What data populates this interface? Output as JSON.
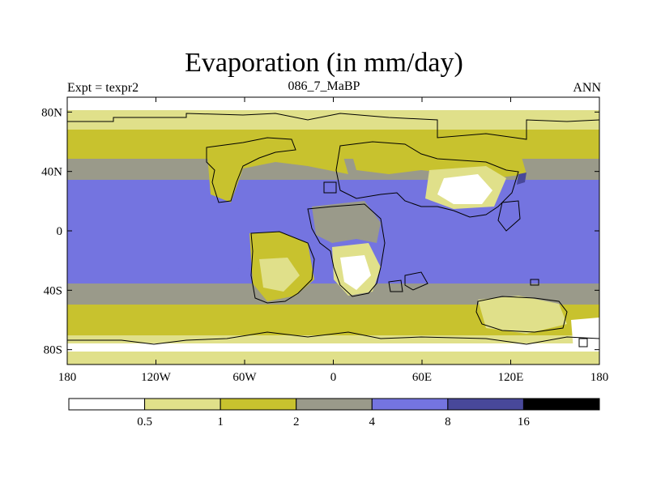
{
  "title": "Evaporation (in mm/day)",
  "subtitle_left": "Expt = texpr2",
  "subtitle_center": "086_7_MaBP",
  "subtitle_right": "ANN",
  "map": {
    "projection": "cylindrical-equidistant",
    "lon_range": [
      -180,
      180
    ],
    "lat_range": [
      -90,
      90
    ],
    "x_ticks": [
      {
        "value": -180,
        "label": "180"
      },
      {
        "value": -120,
        "label": "120W"
      },
      {
        "value": -60,
        "label": "60W"
      },
      {
        "value": 0,
        "label": "0"
      },
      {
        "value": 60,
        "label": "60E"
      },
      {
        "value": 120,
        "label": "120E"
      },
      {
        "value": 180,
        "label": "180"
      }
    ],
    "y_ticks": [
      {
        "value": 80,
        "label": "80N"
      },
      {
        "value": 40,
        "label": "40N"
      },
      {
        "value": 0,
        "label": "0"
      },
      {
        "value": -40,
        "label": "40S"
      },
      {
        "value": -80,
        "label": "80S"
      }
    ]
  },
  "colorbar": {
    "colors": [
      "#ffffff",
      "#e0e08a",
      "#c8c22e",
      "#9a9a8a",
      "#7474e0",
      "#48489a",
      "#000000"
    ],
    "labels": [
      "0.5",
      "1",
      "2",
      "4",
      "8",
      "16"
    ]
  }
}
